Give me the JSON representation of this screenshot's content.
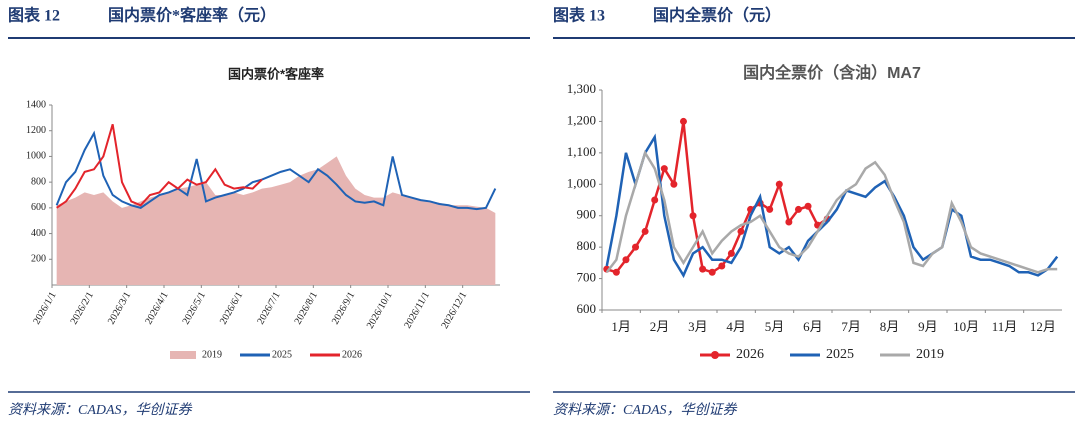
{
  "chart_data": [
    {
      "type": "line",
      "figure_label": "图表 12",
      "figure_title": "国内票价*客座率（元）",
      "title": "国内票价*客座率",
      "source": "资料来源：CADAS，华创证券",
      "categories": [
        "2026/1/1",
        null,
        null,
        null,
        "2026/2/1",
        null,
        null,
        null,
        "2026/3/1",
        null,
        null,
        null,
        "2026/4/1",
        null,
        null,
        null,
        "2026/5/1",
        null,
        null,
        null,
        "2026/6/1",
        null,
        null,
        null,
        "2026/7/1",
        null,
        null,
        null,
        "2026/8/1",
        null,
        null,
        null,
        "2026/9/1",
        null,
        null,
        null,
        "2026/10/1",
        null,
        null,
        null,
        "2026/11/1",
        null,
        null,
        null,
        "2026/12/1",
        null,
        null,
        null
      ],
      "ylim": [
        0,
        1400
      ],
      "yticks": [
        200,
        400,
        600,
        800,
        1000,
        1200,
        1400
      ],
      "legend": "bottom",
      "series": [
        {
          "name": "2019",
          "color": "#e6b5b3",
          "area": true,
          "values": [
            620,
            650,
            680,
            720,
            700,
            720,
            650,
            600,
            620,
            650,
            680,
            700,
            720,
            750,
            760,
            780,
            800,
            700,
            700,
            720,
            700,
            720,
            750,
            760,
            780,
            800,
            850,
            880,
            900,
            950,
            1000,
            850,
            750,
            700,
            680,
            680,
            720,
            700,
            680,
            660,
            650,
            640,
            620,
            620,
            620,
            610,
            600,
            560
          ]
        },
        {
          "name": "2025",
          "color": "#1f62b5",
          "values": [
            620,
            800,
            880,
            1050,
            1180,
            850,
            700,
            650,
            620,
            600,
            650,
            700,
            720,
            750,
            700,
            980,
            650,
            680,
            700,
            720,
            750,
            800,
            820,
            850,
            880,
            900,
            850,
            800,
            900,
            850,
            780,
            700,
            650,
            640,
            650,
            620,
            1000,
            700,
            680,
            660,
            650,
            630,
            620,
            600,
            600,
            590,
            600,
            750
          ]
        },
        {
          "name": "2026",
          "color": "#e3242b",
          "values": [
            600,
            650,
            750,
            880,
            900,
            1000,
            1250,
            800,
            650,
            620,
            700,
            720,
            800,
            750,
            820,
            780,
            800,
            900,
            780,
            750,
            760,
            750,
            820,
            null,
            null,
            null,
            null,
            null,
            null,
            null,
            null,
            null,
            null,
            null,
            null,
            null,
            null,
            null,
            null,
            null,
            null,
            null,
            null,
            null,
            null,
            null,
            null,
            null
          ]
        }
      ]
    },
    {
      "type": "line",
      "figure_label": "图表 13",
      "figure_title": "国内全票价（元）",
      "title": "国内全票价（含油）MA7",
      "source": "资料来源：CADAS，华创证券",
      "categories": [
        "1月",
        null,
        null,
        null,
        "2月",
        null,
        null,
        null,
        "3月",
        null,
        null,
        null,
        "4月",
        null,
        null,
        null,
        "5月",
        null,
        null,
        null,
        "6月",
        null,
        null,
        null,
        "7月",
        null,
        null,
        null,
        "8月",
        null,
        null,
        null,
        "9月",
        null,
        null,
        null,
        "10月",
        null,
        null,
        null,
        "11月",
        null,
        null,
        null,
        "12月",
        null,
        null,
        null
      ],
      "ylim": [
        600,
        1300
      ],
      "yticks": [
        600,
        700,
        800,
        900,
        {
          "value": 1000,
          "label": "1,000"
        },
        {
          "value": 1100,
          "label": "1,100"
        },
        {
          "value": 1200,
          "label": "1,200"
        },
        {
          "value": 1300,
          "label": "1,300"
        }
      ],
      "legend": "bottom",
      "series": [
        {
          "name": "2026",
          "color": "#e3242b",
          "markers": true,
          "values": [
            730,
            720,
            760,
            800,
            850,
            950,
            1050,
            1000,
            1200,
            900,
            730,
            720,
            740,
            780,
            850,
            920,
            940,
            920,
            1000,
            880,
            920,
            930,
            870,
            890,
            null,
            null,
            null,
            null,
            null,
            null,
            null,
            null,
            null,
            null,
            null,
            null,
            null,
            null,
            null,
            null,
            null,
            null,
            null,
            null,
            null,
            null,
            null,
            null
          ]
        },
        {
          "name": "2025",
          "color": "#1f62b5",
          "values": [
            740,
            900,
            1100,
            1000,
            1100,
            1150,
            900,
            760,
            710,
            780,
            800,
            760,
            760,
            750,
            800,
            900,
            960,
            800,
            780,
            800,
            760,
            820,
            850,
            880,
            920,
            980,
            970,
            960,
            990,
            1010,
            960,
            900,
            800,
            760,
            780,
            800,
            920,
            900,
            770,
            760,
            760,
            750,
            740,
            720,
            720,
            710,
            730,
            770
          ]
        },
        {
          "name": "2019",
          "color": "#a9a9a9",
          "values": [
            720,
            760,
            900,
            1000,
            1100,
            1050,
            950,
            800,
            750,
            800,
            850,
            780,
            820,
            850,
            870,
            880,
            900,
            850,
            800,
            780,
            770,
            800,
            850,
            900,
            950,
            980,
            1000,
            1050,
            1070,
            1030,
            950,
            880,
            750,
            740,
            780,
            800,
            940,
            880,
            800,
            780,
            770,
            760,
            750,
            740,
            730,
            720,
            730,
            730
          ]
        }
      ]
    }
  ]
}
